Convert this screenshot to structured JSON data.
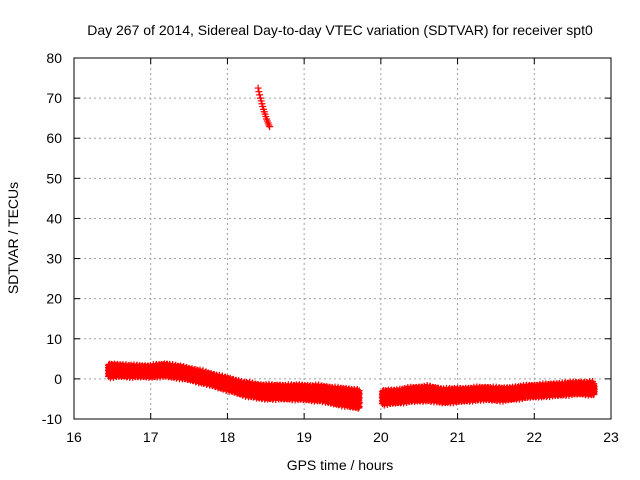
{
  "chart_data": {
    "type": "scatter",
    "title": "Day 267 of 2014, Sidereal Day-to-day VTEC variation (SDTVAR) for receiver spt0",
    "xlabel": "GPS time / hours",
    "ylabel": "SDTVAR / TECUs",
    "xlim": [
      16,
      23
    ],
    "ylim": [
      -10,
      80
    ],
    "xticks": [
      16,
      17,
      18,
      19,
      20,
      21,
      22,
      23
    ],
    "yticks": [
      -10,
      0,
      10,
      20,
      30,
      40,
      50,
      60,
      70,
      80
    ],
    "grid": true,
    "marker": "plus",
    "color": "#ff0000",
    "series": [
      {
        "name": "sdtvar_band_1",
        "band": [
          [
            16.45,
            2.0,
            1.5
          ],
          [
            16.6,
            2.1,
            1.3
          ],
          [
            16.8,
            1.9,
            1.2
          ],
          [
            17.0,
            1.9,
            1.2
          ],
          [
            17.2,
            2.2,
            1.4
          ],
          [
            17.4,
            1.6,
            1.3
          ],
          [
            17.6,
            0.8,
            1.3
          ],
          [
            17.8,
            -0.2,
            1.3
          ],
          [
            18.0,
            -1.3,
            1.4
          ],
          [
            18.2,
            -2.4,
            1.5
          ],
          [
            18.4,
            -3.1,
            1.6
          ],
          [
            18.6,
            -3.3,
            1.6
          ],
          [
            18.8,
            -3.3,
            1.6
          ],
          [
            19.0,
            -3.4,
            1.7
          ],
          [
            19.2,
            -3.6,
            1.8
          ],
          [
            19.4,
            -4.2,
            2.0
          ],
          [
            19.6,
            -4.8,
            2.2
          ],
          [
            19.72,
            -5.0,
            2.3
          ]
        ]
      },
      {
        "name": "sdtvar_band_2",
        "band": [
          [
            20.02,
            -4.7,
            1.6
          ],
          [
            20.2,
            -4.4,
            1.5
          ],
          [
            20.4,
            -3.9,
            1.6
          ],
          [
            20.6,
            -3.6,
            1.7
          ],
          [
            20.8,
            -4.2,
            1.6
          ],
          [
            21.0,
            -4.1,
            1.5
          ],
          [
            21.2,
            -3.8,
            1.4
          ],
          [
            21.4,
            -3.6,
            1.4
          ],
          [
            21.6,
            -3.9,
            1.4
          ],
          [
            21.8,
            -3.4,
            1.3
          ],
          [
            22.0,
            -3.0,
            1.3
          ],
          [
            22.2,
            -2.8,
            1.3
          ],
          [
            22.4,
            -2.5,
            1.3
          ],
          [
            22.6,
            -2.3,
            1.3
          ],
          [
            22.78,
            -2.4,
            1.4
          ]
        ]
      },
      {
        "name": "sdtvar_outlier_arc",
        "points": [
          [
            18.4,
            72.5
          ],
          [
            18.41,
            71.6
          ],
          [
            18.42,
            70.8
          ],
          [
            18.43,
            70.0
          ],
          [
            18.44,
            69.3
          ],
          [
            18.45,
            68.6
          ],
          [
            18.46,
            67.9
          ],
          [
            18.47,
            67.2
          ],
          [
            18.48,
            66.6
          ],
          [
            18.49,
            66.0
          ],
          [
            18.5,
            65.4
          ],
          [
            18.51,
            64.8
          ],
          [
            18.52,
            64.3
          ],
          [
            18.53,
            63.8
          ],
          [
            18.54,
            63.3
          ],
          [
            18.55,
            62.9
          ]
        ]
      }
    ]
  }
}
